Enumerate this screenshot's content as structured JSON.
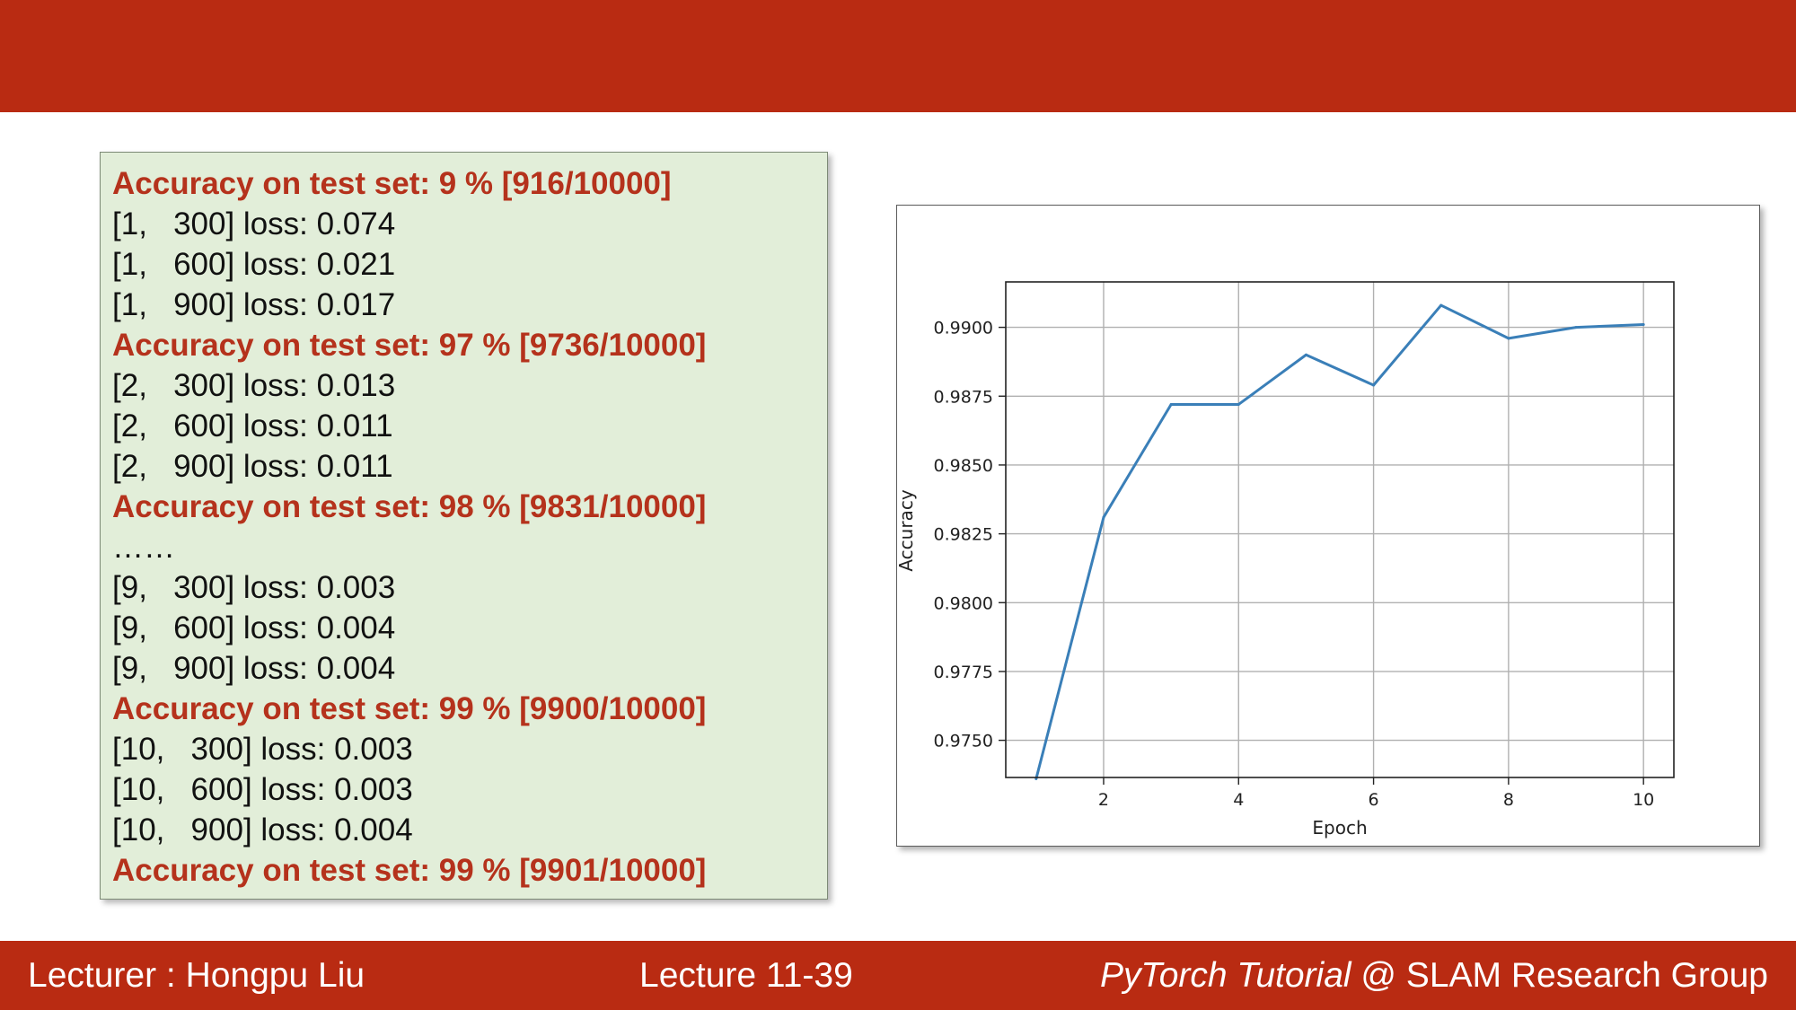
{
  "log_lines": [
    {
      "text": "Accuracy on test set: 9 % [916/10000]",
      "kind": "acc"
    },
    {
      "text": "[1,   300] loss: 0.074",
      "kind": "loss"
    },
    {
      "text": "[1,   600] loss: 0.021",
      "kind": "loss"
    },
    {
      "text": "[1,   900] loss: 0.017",
      "kind": "loss"
    },
    {
      "text": "Accuracy on test set: 97 % [9736/10000]",
      "kind": "acc"
    },
    {
      "text": "[2,   300] loss: 0.013",
      "kind": "loss"
    },
    {
      "text": "[2,   600] loss: 0.011",
      "kind": "loss"
    },
    {
      "text": "[2,   900] loss: 0.011",
      "kind": "loss"
    },
    {
      "text": "Accuracy on test set: 98 % [9831/10000]",
      "kind": "acc"
    },
    {
      "text": "……",
      "kind": "ellipsis"
    },
    {
      "text": "[9,   300] loss: 0.003",
      "kind": "loss"
    },
    {
      "text": "[9,   600] loss: 0.004",
      "kind": "loss"
    },
    {
      "text": "[9,   900] loss: 0.004",
      "kind": "loss"
    },
    {
      "text": "Accuracy on test set: 99 % [9900/10000]",
      "kind": "acc"
    },
    {
      "text": "[10,   300] loss: 0.003",
      "kind": "loss"
    },
    {
      "text": "[10,   600] loss: 0.003",
      "kind": "loss"
    },
    {
      "text": "[10,   900] loss: 0.004",
      "kind": "loss"
    },
    {
      "text": "Accuracy on test set: 99 % [9901/10000]",
      "kind": "acc"
    }
  ],
  "chart_data": {
    "type": "line",
    "title": "",
    "xlabel": "Epoch",
    "ylabel": "Accuracy",
    "x": [
      1,
      2,
      3,
      4,
      5,
      6,
      7,
      8,
      9,
      10
    ],
    "series": [
      {
        "values": [
          0.9736,
          0.9831,
          0.9872,
          0.9872,
          0.989,
          0.9879,
          0.9908,
          0.9896,
          0.99,
          0.9901
        ]
      }
    ],
    "xticks": [
      2,
      4,
      6,
      8,
      10
    ],
    "yticks": [
      0.975,
      0.9775,
      0.98,
      0.9825,
      0.985,
      0.9875,
      0.99
    ],
    "xlim": [
      0.55,
      10.45
    ],
    "ylim": [
      0.97365,
      0.99165
    ],
    "grid": true,
    "line_color": "#3a7fb8"
  },
  "footer": {
    "lecturer": "Lecturer : Hongpu Liu",
    "lecture": "Lecture 11-39",
    "course": "PyTorch Tutorial",
    "group": " @ SLAM Research Group"
  },
  "colors": {
    "banner": "#b92b12",
    "accuracy_text": "#b5321c",
    "panel_background": "#e2eed9"
  }
}
